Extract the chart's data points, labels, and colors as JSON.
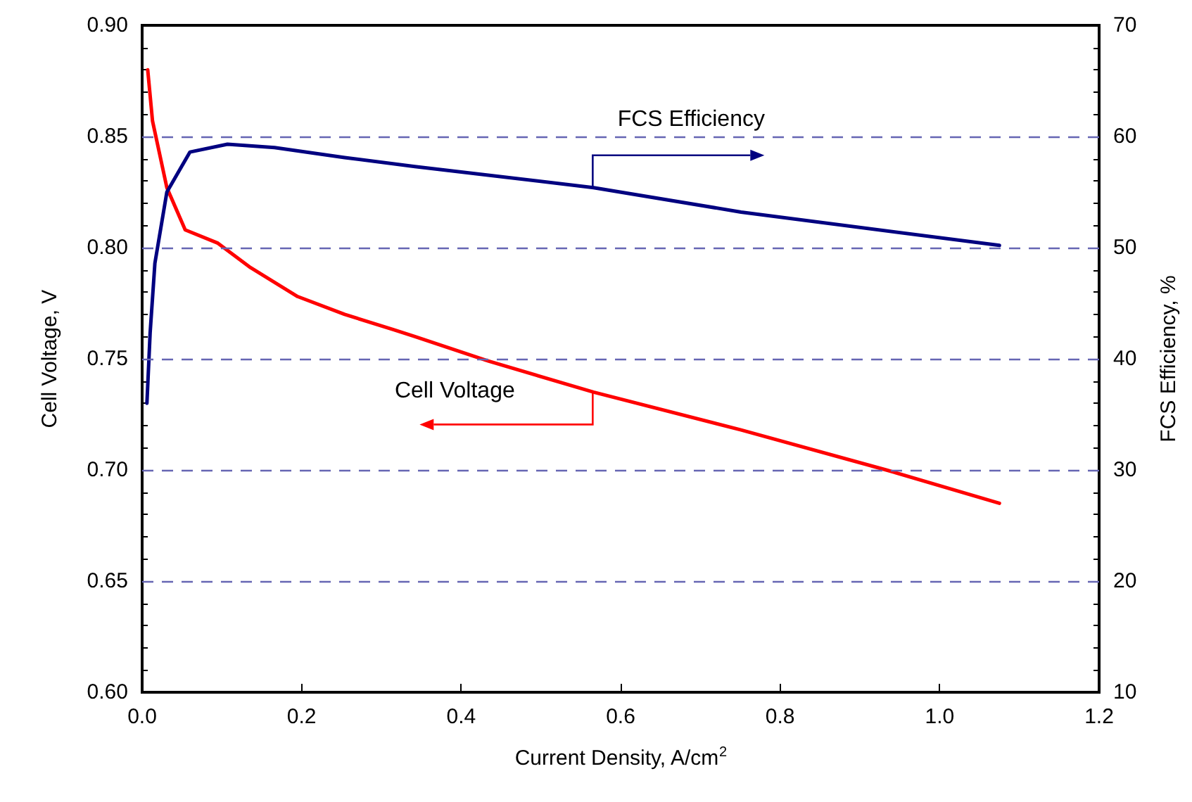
{
  "chart_data": {
    "type": "line",
    "xlabel": "Current Density, A/cm$^{2}$",
    "ylabel": "Cell Voltage, V",
    "y2label": "FCS Efficiency, %",
    "xlim": [
      0,
      1.2
    ],
    "xticks": [
      {
        "value": 0,
        "label": "0.0"
      },
      0.2,
      0.4,
      0.6,
      0.8,
      {
        "value": 1,
        "label": "1.0"
      },
      1.2
    ],
    "ylim": [
      0.6,
      0.9
    ],
    "yticks": [
      {
        "value": 0.6,
        "label": "0.60"
      },
      0.65,
      {
        "value": 0.7,
        "label": "0.70"
      },
      0.75,
      {
        "value": 0.8,
        "label": "0.80"
      },
      0.85,
      {
        "value": 0.9,
        "label": "0.90"
      }
    ],
    "y2lim": [
      10,
      70
    ],
    "y2ticks": [
      10,
      20,
      30,
      40,
      50,
      60,
      70
    ],
    "grid": "y",
    "marker": "none",
    "line_style": "solid",
    "annotations": [
      {
        "text": "FCS Efficiency",
        "x": 0.565,
        "y": 0.827
      },
      {
        "text": "Cell Voltage",
        "x": 0.565,
        "y": 0.735
      }
    ],
    "series": [
      {
        "color": "#ff0000",
        "x": [
          0.007,
          0.013,
          0.031,
          0.054,
          0.095,
          0.136,
          0.195,
          0.254,
          0.316,
          0.342,
          0.434,
          0.566,
          0.751,
          0.933,
          1.075
        ],
        "values": [
          0.88,
          0.857,
          0.827,
          0.808,
          0.802,
          0.791,
          0.778,
          0.77,
          0.763,
          0.76,
          0.749,
          0.735,
          0.718,
          0.7,
          0.685
        ]
      },
      {
        "color": "#000080",
        "axis": "y2",
        "x": [
          0.006,
          0.01,
          0.016,
          0.031,
          0.06,
          0.107,
          0.166,
          0.254,
          0.342,
          0.566,
          0.751,
          1.075
        ],
        "values": [
          36.0,
          42.3,
          48.6,
          55.0,
          58.6,
          59.3,
          59.0,
          58.1,
          57.3,
          55.4,
          53.2,
          50.2
        ]
      }
    ]
  }
}
